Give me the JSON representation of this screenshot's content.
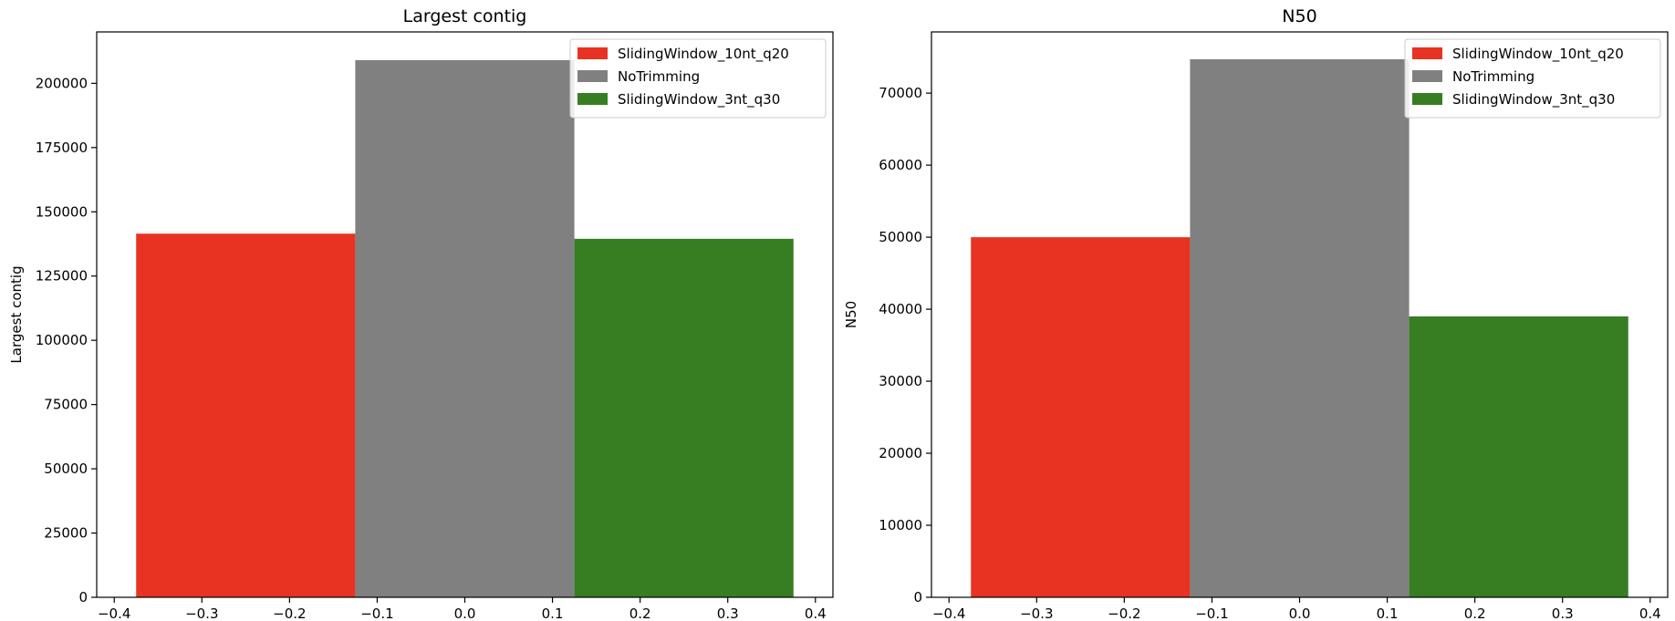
{
  "chart_data": [
    {
      "type": "bar",
      "title": "Largest contig",
      "xlabel": "",
      "ylabel": "Largest contig",
      "xlim": [
        -0.42,
        0.42
      ],
      "ylim": [
        0,
        220000
      ],
      "xticks": [
        -0.4,
        -0.3,
        -0.2,
        -0.1,
        0.0,
        0.1,
        0.2,
        0.3,
        0.4
      ],
      "xtick_labels": [
        "−0.4",
        "−0.3",
        "−0.2",
        "−0.1",
        "0.0",
        "0.1",
        "0.2",
        "0.3",
        "0.4"
      ],
      "yticks": [
        0,
        25000,
        50000,
        75000,
        100000,
        125000,
        150000,
        175000,
        200000
      ],
      "ytick_labels": [
        "0",
        "25000",
        "50000",
        "75000",
        "100000",
        "125000",
        "150000",
        "175000",
        "200000"
      ],
      "bar_width": 0.25,
      "grid": false,
      "legend_position": "top-right",
      "series": [
        {
          "name": "SlidingWindow_10nt_q20",
          "x": -0.25,
          "value": 141500,
          "color": "#e83323"
        },
        {
          "name": "NoTrimming",
          "x": 0.0,
          "value": 209000,
          "color": "#808080"
        },
        {
          "name": "SlidingWindow_3nt_q30",
          "x": 0.25,
          "value": 139500,
          "color": "#377e22"
        }
      ]
    },
    {
      "type": "bar",
      "title": "N50",
      "xlabel": "",
      "ylabel": "N50",
      "xlim": [
        -0.42,
        0.42
      ],
      "ylim": [
        0,
        78500
      ],
      "xticks": [
        -0.4,
        -0.3,
        -0.2,
        -0.1,
        0.0,
        0.1,
        0.2,
        0.3,
        0.4
      ],
      "xtick_labels": [
        "−0.4",
        "−0.3",
        "−0.2",
        "−0.1",
        "0.0",
        "0.1",
        "0.2",
        "0.3",
        "0.4"
      ],
      "yticks": [
        0,
        10000,
        20000,
        30000,
        40000,
        50000,
        60000,
        70000
      ],
      "ytick_labels": [
        "0",
        "10000",
        "20000",
        "30000",
        "40000",
        "50000",
        "60000",
        "70000"
      ],
      "bar_width": 0.25,
      "grid": false,
      "legend_position": "top-right",
      "series": [
        {
          "name": "SlidingWindow_10nt_q20",
          "x": -0.25,
          "value": 50000,
          "color": "#e83323"
        },
        {
          "name": "NoTrimming",
          "x": 0.0,
          "value": 74700,
          "color": "#808080"
        },
        {
          "name": "SlidingWindow_3nt_q30",
          "x": 0.25,
          "value": 39000,
          "color": "#377e22"
        }
      ]
    }
  ]
}
